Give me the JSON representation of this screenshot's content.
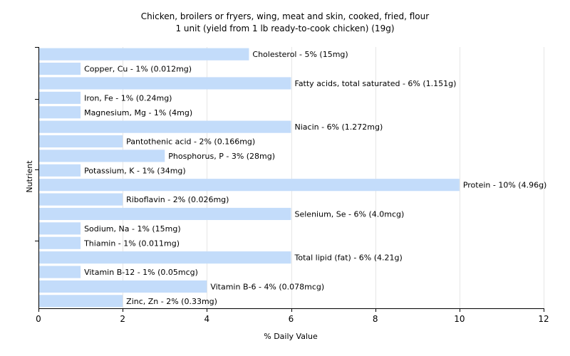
{
  "chart_data": {
    "type": "bar",
    "orientation": "horizontal",
    "title": "Chicken, broilers or fryers, wing, meat and skin, cooked, fried, flour",
    "subtitle": "1 unit (yield from 1 lb ready-to-cook chicken) (19g)",
    "xlabel": "% Daily Value",
    "ylabel": "Nutrient",
    "xlim": [
      0,
      12
    ],
    "xticks": [
      "0",
      "2",
      "4",
      "6",
      "8",
      "10",
      "12"
    ],
    "grid": "vertical",
    "bar_color": "#c3dcfa",
    "categories": [
      "Cholesterol",
      "Copper, Cu",
      "Fatty acids, total saturated",
      "Iron, Fe",
      "Magnesium, Mg",
      "Niacin",
      "Pantothenic acid",
      "Phosphorus, P",
      "Potassium, K",
      "Protein",
      "Riboflavin",
      "Selenium, Se",
      "Sodium, Na",
      "Thiamin",
      "Total lipid (fat)",
      "Vitamin B-12",
      "Vitamin B-6",
      "Zinc, Zn"
    ],
    "values": [
      5,
      1,
      6,
      1,
      1,
      6,
      2,
      3,
      1,
      10,
      2,
      6,
      1,
      1,
      6,
      1,
      4,
      2
    ],
    "labels": [
      "Cholesterol - 5% (15mg)",
      "Copper, Cu - 1% (0.012mg)",
      "Fatty acids, total saturated - 6% (1.151g)",
      "Iron, Fe - 1% (0.24mg)",
      "Magnesium, Mg - 1% (4mg)",
      "Niacin - 6% (1.272mg)",
      "Pantothenic acid - 2% (0.166mg)",
      "Phosphorus, P - 3% (28mg)",
      "Potassium, K - 1% (34mg)",
      "Protein - 10% (4.96g)",
      "Riboflavin - 2% (0.026mg)",
      "Selenium, Se - 6% (4.0mcg)",
      "Sodium, Na - 1% (15mg)",
      "Thiamin - 1% (0.011mg)",
      "Total lipid (fat) - 6% (4.21g)",
      "Vitamin B-12 - 1% (0.05mcg)",
      "Vitamin B-6 - 4% (0.078mcg)",
      "Zinc, Zn - 2% (0.33mg)"
    ]
  }
}
